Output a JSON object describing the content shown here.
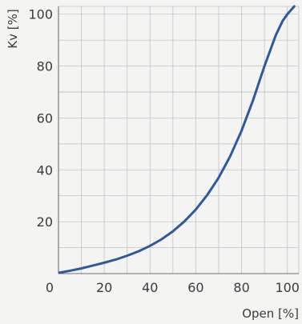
{
  "chart_data": {
    "type": "line",
    "title": "",
    "xlabel": "Open [%]",
    "ylabel": "Kv [%]",
    "xlim": [
      0,
      105
    ],
    "ylim": [
      0,
      103
    ],
    "grid": true,
    "x_ticks": [
      0,
      20,
      40,
      60,
      80,
      100
    ],
    "y_ticks": [
      20,
      40,
      60,
      80,
      100
    ],
    "x_tick_labels": [
      "0",
      "20",
      "40",
      "60",
      "80",
      "100"
    ],
    "y_tick_labels": [
      "20",
      "40",
      "60",
      "80",
      "100"
    ],
    "series": [
      {
        "color": "#2c5aa0",
        "x": [
          0,
          5,
          10,
          15,
          20,
          25,
          30,
          35,
          40,
          45,
          50,
          55,
          60,
          65,
          70,
          75,
          80,
          85,
          90,
          95,
          98,
          100,
          102,
          103
        ],
        "y": [
          0.3,
          1.1,
          2.0,
          3.1,
          4.2,
          5.4,
          6.9,
          8.6,
          10.7,
          13.2,
          16.3,
          20.1,
          24.7,
          30.3,
          37.0,
          45.2,
          55.1,
          66.8,
          80.0,
          92.0,
          97.5,
          100.0,
          102.0,
          103.0
        ]
      }
    ]
  }
}
